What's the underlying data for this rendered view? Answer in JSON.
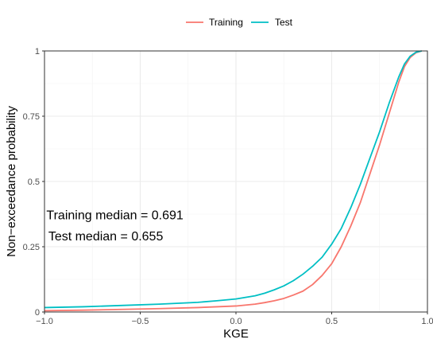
{
  "chart_data": {
    "type": "line",
    "title": "",
    "xlabel": "KGE",
    "ylabel": "Non−exceedance probability",
    "xlim": [
      -1.0,
      1.0
    ],
    "ylim": [
      0,
      1
    ],
    "x_ticks": [
      "−1.0",
      "−0.5",
      "0.0",
      "0.5",
      "1.0"
    ],
    "x_tick_values": [
      -1.0,
      -0.5,
      0.0,
      0.5,
      1.0
    ],
    "y_ticks": [
      "0",
      "0.25",
      "0.5",
      "0.75",
      "1"
    ],
    "y_tick_values": [
      0,
      0.25,
      0.5,
      0.75,
      1
    ],
    "grid": true,
    "legend_position": "top",
    "series": [
      {
        "name": "Training",
        "color": "#F8766D",
        "points": [
          [
            -1.0,
            0.005
          ],
          [
            -0.8,
            0.007
          ],
          [
            -0.6,
            0.01
          ],
          [
            -0.4,
            0.013
          ],
          [
            -0.2,
            0.017
          ],
          [
            -0.1,
            0.02
          ],
          [
            0.0,
            0.023
          ],
          [
            0.1,
            0.03
          ],
          [
            0.15,
            0.036
          ],
          [
            0.2,
            0.043
          ],
          [
            0.25,
            0.052
          ],
          [
            0.3,
            0.065
          ],
          [
            0.35,
            0.08
          ],
          [
            0.4,
            0.105
          ],
          [
            0.45,
            0.14
          ],
          [
            0.5,
            0.185
          ],
          [
            0.55,
            0.25
          ],
          [
            0.6,
            0.33
          ],
          [
            0.65,
            0.42
          ],
          [
            0.7,
            0.53
          ],
          [
            0.75,
            0.64
          ],
          [
            0.8,
            0.76
          ],
          [
            0.85,
            0.88
          ],
          [
            0.88,
            0.94
          ],
          [
            0.91,
            0.975
          ],
          [
            0.94,
            0.993
          ],
          [
            0.97,
            1.0
          ]
        ]
      },
      {
        "name": "Test",
        "color": "#00BFC4",
        "points": [
          [
            -1.0,
            0.017
          ],
          [
            -0.8,
            0.02
          ],
          [
            -0.6,
            0.025
          ],
          [
            -0.4,
            0.03
          ],
          [
            -0.2,
            0.037
          ],
          [
            -0.1,
            0.043
          ],
          [
            0.0,
            0.05
          ],
          [
            0.1,
            0.062
          ],
          [
            0.15,
            0.072
          ],
          [
            0.2,
            0.085
          ],
          [
            0.25,
            0.1
          ],
          [
            0.3,
            0.12
          ],
          [
            0.35,
            0.145
          ],
          [
            0.4,
            0.175
          ],
          [
            0.45,
            0.21
          ],
          [
            0.5,
            0.26
          ],
          [
            0.55,
            0.32
          ],
          [
            0.6,
            0.4
          ],
          [
            0.65,
            0.49
          ],
          [
            0.7,
            0.59
          ],
          [
            0.75,
            0.69
          ],
          [
            0.8,
            0.8
          ],
          [
            0.85,
            0.9
          ],
          [
            0.88,
            0.95
          ],
          [
            0.91,
            0.98
          ],
          [
            0.94,
            0.995
          ],
          [
            0.97,
            1.0
          ]
        ]
      }
    ],
    "annotations": [
      {
        "text": "Training median = 0.691",
        "x": -0.99,
        "y": 0.355
      },
      {
        "text": "Test median = 0.655",
        "x": -0.98,
        "y": 0.275
      }
    ]
  }
}
